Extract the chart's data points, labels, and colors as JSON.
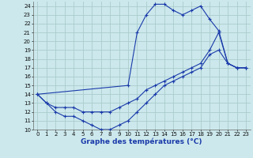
{
  "bg_color": "#cce8ec",
  "grid_color": "#aacccc",
  "line_color": "#1a3aaa",
  "title": "Graphe des températures (°C)",
  "xlabel_fontsize": 6.5,
  "tick_fontsize": 5.0,
  "xlim": [
    -0.5,
    23.5
  ],
  "ylim": [
    10,
    24.5
  ],
  "xticks": [
    0,
    1,
    2,
    3,
    4,
    5,
    6,
    7,
    8,
    9,
    10,
    11,
    12,
    13,
    14,
    15,
    16,
    17,
    18,
    19,
    20,
    21,
    22,
    23
  ],
  "yticks": [
    10,
    11,
    12,
    13,
    14,
    15,
    16,
    17,
    18,
    19,
    20,
    21,
    22,
    23,
    24
  ],
  "line1_x": [
    0,
    1,
    2,
    3,
    4,
    5,
    6,
    7,
    8,
    9,
    10,
    11,
    12,
    13,
    14,
    15,
    16,
    17,
    18,
    19,
    20,
    21,
    22,
    23
  ],
  "line1_y": [
    14,
    13,
    12,
    11.5,
    11.5,
    11,
    10.5,
    10,
    10,
    10.5,
    11,
    12,
    13,
    14,
    15,
    15.5,
    16,
    16.5,
    17,
    18.5,
    19,
    17.5,
    17,
    17
  ],
  "line2_x": [
    0,
    1,
    2,
    3,
    4,
    5,
    6,
    7,
    8,
    9,
    10,
    11,
    12,
    13,
    14,
    15,
    16,
    17,
    18,
    19,
    20,
    21,
    22,
    23
  ],
  "line2_y": [
    14,
    13,
    12.5,
    12.5,
    12.5,
    12,
    12,
    12,
    12,
    12.5,
    13,
    13.5,
    14.5,
    15,
    15.5,
    16,
    16.5,
    17,
    17.5,
    19,
    21,
    17.5,
    17,
    17
  ],
  "line3_x": [
    0,
    10,
    11,
    12,
    13,
    14,
    15,
    16,
    17,
    18,
    19,
    20,
    21,
    22,
    23
  ],
  "line3_y": [
    14,
    15,
    21,
    23,
    24.2,
    24.2,
    23.5,
    23,
    23.5,
    24,
    22.5,
    21.2,
    17.5,
    17,
    17
  ]
}
